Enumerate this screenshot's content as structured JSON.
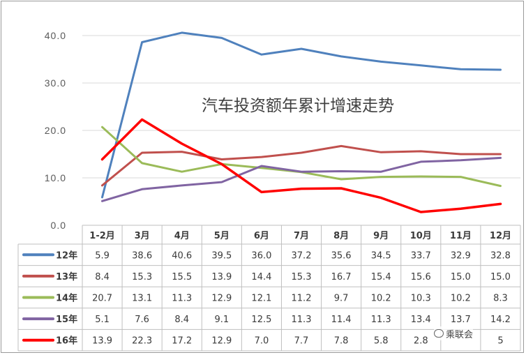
{
  "chart_data": {
    "type": "line",
    "title": "汽车投资额年累计增速走势",
    "categories": [
      "1-2月",
      "3月",
      "4月",
      "5月",
      "6月",
      "7月",
      "8月",
      "9月",
      "10月",
      "11月",
      "12月"
    ],
    "y_ticks": [
      "0.0",
      "10.0",
      "20.0",
      "30.0",
      "40.0"
    ],
    "ylim": [
      0,
      45
    ],
    "grid": true,
    "legend": "data-table-left",
    "series": [
      {
        "name": "12年",
        "color": "#4F81BD",
        "values": [
          5.9,
          38.6,
          40.6,
          39.5,
          36.0,
          37.2,
          35.6,
          34.5,
          33.7,
          32.9,
          32.8
        ],
        "labels": [
          "5.9",
          "38.6",
          "40.6",
          "39.5",
          "36.0",
          "37.2",
          "35.6",
          "34.5",
          "33.7",
          "32.9",
          "32.8"
        ]
      },
      {
        "name": "13年",
        "color": "#C0504D",
        "values": [
          8.4,
          15.3,
          15.5,
          13.9,
          14.4,
          15.3,
          16.7,
          15.4,
          15.6,
          15.0,
          15.0
        ],
        "labels": [
          "8.4",
          "15.3",
          "15.5",
          "13.9",
          "14.4",
          "15.3",
          "16.7",
          "15.4",
          "15.6",
          "15.0",
          "15.0"
        ]
      },
      {
        "name": "14年",
        "color": "#9BBB59",
        "values": [
          20.7,
          13.1,
          11.3,
          12.9,
          12.1,
          11.2,
          9.7,
          10.2,
          10.3,
          10.2,
          8.3
        ],
        "labels": [
          "20.7",
          "13.1",
          "11.3",
          "12.9",
          "12.1",
          "11.2",
          "9.7",
          "10.2",
          "10.3",
          "10.2",
          "8.3"
        ]
      },
      {
        "name": "15年",
        "color": "#8064A2",
        "values": [
          5.1,
          7.6,
          8.4,
          9.1,
          12.5,
          11.3,
          11.4,
          11.3,
          13.4,
          13.7,
          14.2
        ],
        "labels": [
          "5.1",
          "7.6",
          "8.4",
          "9.1",
          "12.5",
          "11.3",
          "11.4",
          "11.3",
          "13.4",
          "13.7",
          "14.2"
        ]
      },
      {
        "name": "16年",
        "color": "#FF0000",
        "values": [
          13.9,
          22.3,
          17.2,
          12.9,
          7.0,
          7.7,
          7.8,
          5.8,
          2.8,
          3.5,
          4.5
        ],
        "labels": [
          "13.9",
          "22.3",
          "17.2",
          "12.9",
          "7.0",
          "7.7",
          "7.8",
          "5.8",
          "2.8",
          "",
          "5"
        ]
      }
    ]
  },
  "watermark": {
    "text": "乘联会"
  }
}
